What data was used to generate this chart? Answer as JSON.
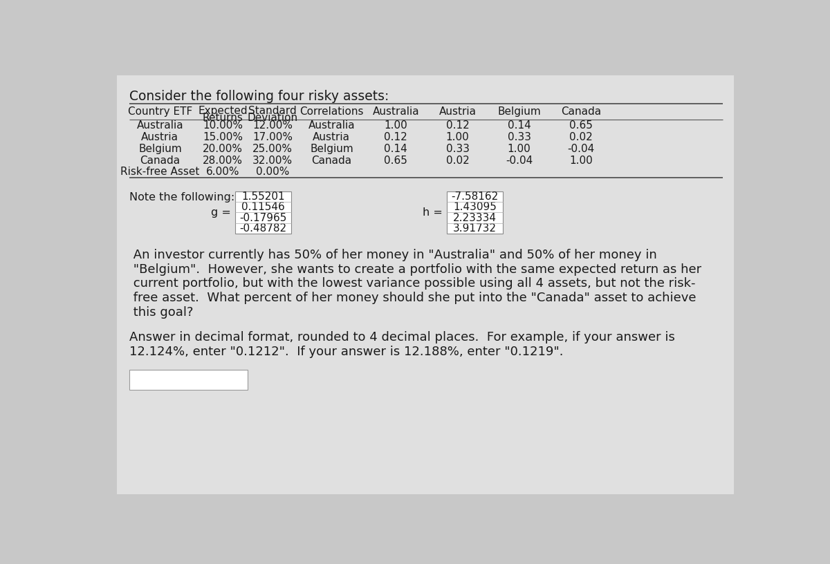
{
  "title": "Consider the following four risky assets:",
  "bg_color": "#c8c8c8",
  "content_bg": "#e0e0e0",
  "table_rows": [
    [
      "Australia",
      "10.00%",
      "12.00%",
      "Australia",
      "1.00",
      "0.12",
      "0.14",
      "0.65"
    ],
    [
      "Austria",
      "15.00%",
      "17.00%",
      "Austria",
      "0.12",
      "1.00",
      "0.33",
      "0.02"
    ],
    [
      "Belgium",
      "20.00%",
      "25.00%",
      "Belgium",
      "0.14",
      "0.33",
      "1.00",
      "-0.04"
    ],
    [
      "Canada",
      "28.00%",
      "32.00%",
      "Canada",
      "0.65",
      "0.02",
      "-0.04",
      "1.00"
    ]
  ],
  "risk_free": [
    "Risk-free Asset",
    "6.00%",
    "0.00%"
  ],
  "g_values": [
    "1.55201",
    "0.11546",
    "-0.17965",
    "-0.48782"
  ],
  "h_values": [
    "-7.58162",
    "1.43095",
    "2.23334",
    "3.91732"
  ],
  "note_label": "Note the following:",
  "paragraph_lines": [
    " An investor currently has 50% of her money in \"Australia\" and 50% of her money in",
    " \"Belgium\".  However, she wants to create a portfolio with the same expected return as her",
    " current portfolio, but with the lowest variance possible using all 4 assets, but not the risk-",
    " free asset.  What percent of her money should she put into the \"Canada\" asset to achieve",
    " this goal?"
  ],
  "answer_lines": [
    "Answer in decimal format, rounded to 4 decimal places.  For example, if your answer is",
    "12.124%, enter \"0.1212\".  If your answer is 12.188%, enter \"0.1219\"."
  ],
  "text_color": "#1a1a1a",
  "title_fs": 13.5,
  "table_fs": 11.0,
  "body_fs": 13.0,
  "note_fs": 11.5
}
